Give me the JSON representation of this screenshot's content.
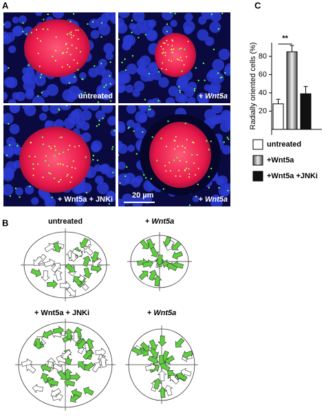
{
  "panel_a": {
    "label": "A",
    "images": [
      {
        "caption": "untreated"
      },
      {
        "caption": "+ Wnt5a"
      },
      {
        "caption": "+ Wnt5a + JNKi"
      },
      {
        "caption": "+ Wnt5a",
        "scale_bar": "20 µm"
      }
    ]
  },
  "panel_b": {
    "label": "B",
    "diagrams": [
      {
        "caption": "untreated"
      },
      {
        "caption": "+ Wnt5a"
      },
      {
        "caption": "+ Wnt5a + JNKi"
      },
      {
        "caption": "+ Wnt5a"
      }
    ]
  },
  "chart_data": {
    "type": "bar",
    "panel_label": "C",
    "y_label": "Radially oriented cells (%)",
    "categories": [
      null
    ],
    "series": [
      {
        "name": "untreated",
        "color": "#ffffff",
        "values": [
          28
        ],
        "errors": [
          5
        ]
      },
      {
        "name": "+Wnt5a",
        "color": "#9a9a9a",
        "values": [
          85
        ],
        "errors": [
          7
        ]
      },
      {
        "name": "+Wnt5a +JNKi",
        "color": "#111111",
        "values": [
          39
        ],
        "errors": [
          8
        ]
      }
    ],
    "ylim": [
      0,
      95
    ],
    "yticks": [
      20,
      40,
      60,
      80
    ],
    "annotation": "**"
  }
}
